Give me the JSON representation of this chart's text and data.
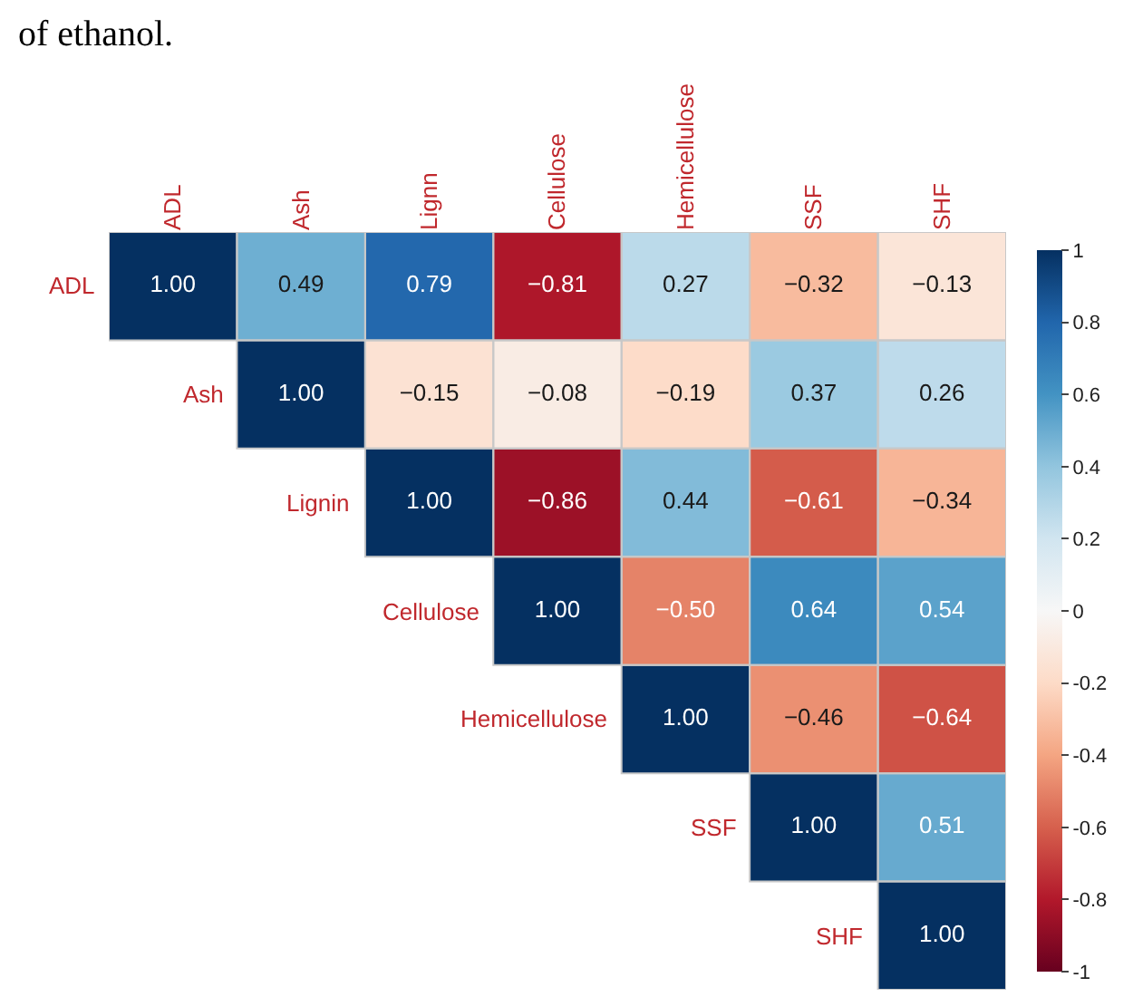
{
  "chart_data": {
    "type": "heatmap",
    "annotations": [
      "of ethanol."
    ],
    "categories": [
      "ADL",
      "Ash",
      "Lignn",
      "Cellulose",
      "Hemicellulose",
      "SSF",
      "SHF"
    ],
    "y_categories": [
      "ADL",
      "Ash",
      "Lignin",
      "Cellulose",
      "Hemicellulose",
      "SSF",
      "SHF"
    ],
    "cells": [
      [
        1.0,
        0.49,
        0.79,
        -0.81,
        0.27,
        -0.32,
        -0.13
      ],
      [
        null,
        1.0,
        -0.15,
        -0.08,
        -0.19,
        0.37,
        0.26
      ],
      [
        null,
        null,
        1.0,
        -0.86,
        0.44,
        -0.61,
        -0.34
      ],
      [
        null,
        null,
        null,
        1.0,
        -0.5,
        0.64,
        0.54
      ],
      [
        null,
        null,
        null,
        null,
        1.0,
        -0.46,
        -0.64
      ],
      [
        null,
        null,
        null,
        null,
        null,
        1.0,
        0.51
      ],
      [
        null,
        null,
        null,
        null,
        null,
        null,
        1.0
      ]
    ],
    "clim": [
      -1,
      1
    ],
    "cticks": [
      -1,
      -0.8,
      -0.6,
      -0.4,
      -0.2,
      0,
      0.2,
      0.4,
      0.6,
      0.8,
      1
    ],
    "cell_labels": [
      [
        "1.00",
        "0.49",
        "0.79",
        "−0.81",
        "0.27",
        "−0.32",
        "−0.13"
      ],
      [
        null,
        "1.00",
        "−0.15",
        "−0.08",
        "−0.19",
        "0.37",
        "0.26"
      ],
      [
        null,
        null,
        "1.00",
        "−0.86",
        "0.44",
        "−0.61",
        "−0.34"
      ],
      [
        null,
        null,
        null,
        "1.00",
        "−0.50",
        "0.64",
        "0.54"
      ],
      [
        null,
        null,
        null,
        null,
        "1.00",
        "−0.46",
        "−0.64"
      ],
      [
        null,
        null,
        null,
        null,
        null,
        "1.00",
        "0.51"
      ],
      [
        null,
        null,
        null,
        null,
        null,
        null,
        "1.00"
      ]
    ]
  }
}
